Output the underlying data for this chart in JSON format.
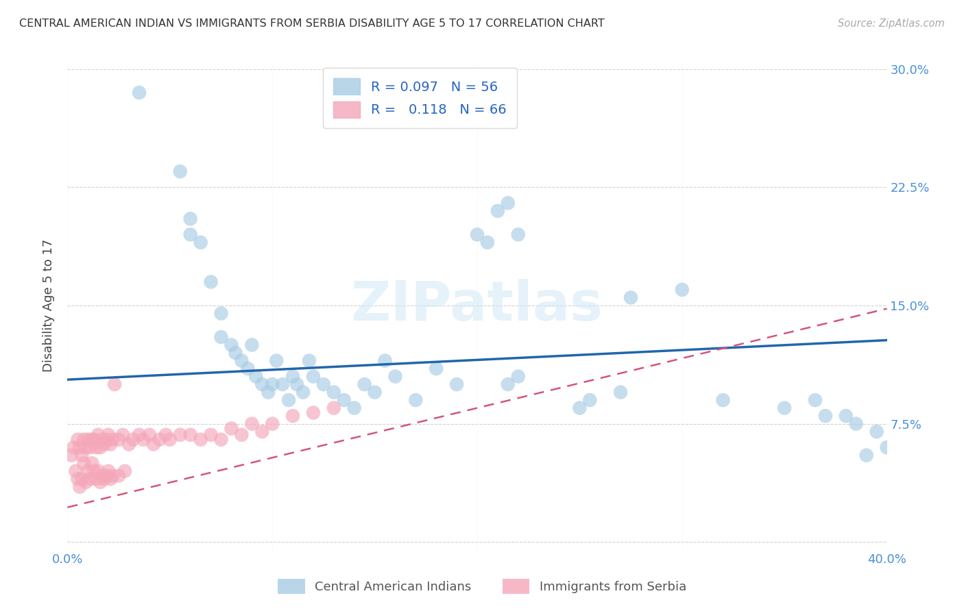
{
  "title": "CENTRAL AMERICAN INDIAN VS IMMIGRANTS FROM SERBIA DISABILITY AGE 5 TO 17 CORRELATION CHART",
  "source": "Source: ZipAtlas.com",
  "ylabel": "Disability Age 5 to 17",
  "yticks": [
    0.0,
    0.075,
    0.15,
    0.225,
    0.3
  ],
  "ytick_labels": [
    "",
    "7.5%",
    "15.0%",
    "22.5%",
    "30.0%"
  ],
  "xlim": [
    0.0,
    0.4
  ],
  "ylim": [
    -0.005,
    0.305
  ],
  "legend_bottom1": "Central American Indians",
  "legend_bottom2": "Immigrants from Serbia",
  "blue_color": "#a8cce4",
  "pink_color": "#f4a7b9",
  "line_blue": "#2166ac",
  "line_pink": "#d4547a",
  "watermark": "ZIPatlas",
  "blue_line_start_y": 0.103,
  "blue_line_end_y": 0.128,
  "pink_line_start_y": 0.022,
  "pink_line_end_y": 0.148,
  "blue_scatter_x": [
    0.035,
    0.055,
    0.06,
    0.06,
    0.065,
    0.07,
    0.075,
    0.075,
    0.08,
    0.082,
    0.085,
    0.088,
    0.09,
    0.092,
    0.095,
    0.098,
    0.1,
    0.102,
    0.105,
    0.108,
    0.11,
    0.112,
    0.115,
    0.118,
    0.12,
    0.125,
    0.13,
    0.135,
    0.14,
    0.145,
    0.15,
    0.155,
    0.16,
    0.17,
    0.18,
    0.19,
    0.2,
    0.205,
    0.21,
    0.215,
    0.22,
    0.25,
    0.255,
    0.275,
    0.3,
    0.32,
    0.35,
    0.365,
    0.37,
    0.38,
    0.385,
    0.39,
    0.395,
    0.4,
    0.215,
    0.22,
    0.27
  ],
  "blue_scatter_y": [
    0.285,
    0.235,
    0.205,
    0.195,
    0.19,
    0.165,
    0.145,
    0.13,
    0.125,
    0.12,
    0.115,
    0.11,
    0.125,
    0.105,
    0.1,
    0.095,
    0.1,
    0.115,
    0.1,
    0.09,
    0.105,
    0.1,
    0.095,
    0.115,
    0.105,
    0.1,
    0.095,
    0.09,
    0.085,
    0.1,
    0.095,
    0.115,
    0.105,
    0.09,
    0.11,
    0.1,
    0.195,
    0.19,
    0.21,
    0.215,
    0.195,
    0.085,
    0.09,
    0.155,
    0.16,
    0.09,
    0.085,
    0.09,
    0.08,
    0.08,
    0.075,
    0.055,
    0.07,
    0.06,
    0.1,
    0.105,
    0.095
  ],
  "pink_scatter_x": [
    0.002,
    0.003,
    0.004,
    0.005,
    0.005,
    0.006,
    0.006,
    0.007,
    0.007,
    0.008,
    0.008,
    0.009,
    0.009,
    0.01,
    0.01,
    0.011,
    0.011,
    0.012,
    0.012,
    0.013,
    0.013,
    0.014,
    0.014,
    0.015,
    0.015,
    0.016,
    0.016,
    0.017,
    0.017,
    0.018,
    0.018,
    0.019,
    0.019,
    0.02,
    0.02,
    0.021,
    0.021,
    0.022,
    0.022,
    0.023,
    0.025,
    0.025,
    0.027,
    0.028,
    0.03,
    0.032,
    0.035,
    0.037,
    0.04,
    0.042,
    0.045,
    0.048,
    0.05,
    0.055,
    0.06,
    0.065,
    0.07,
    0.075,
    0.08,
    0.085,
    0.09,
    0.095,
    0.1,
    0.11,
    0.12,
    0.13
  ],
  "pink_scatter_y": [
    0.055,
    0.06,
    0.045,
    0.065,
    0.04,
    0.06,
    0.035,
    0.055,
    0.04,
    0.065,
    0.05,
    0.06,
    0.038,
    0.065,
    0.045,
    0.06,
    0.04,
    0.065,
    0.05,
    0.065,
    0.045,
    0.06,
    0.04,
    0.068,
    0.045,
    0.06,
    0.038,
    0.065,
    0.042,
    0.062,
    0.04,
    0.065,
    0.042,
    0.068,
    0.045,
    0.062,
    0.04,
    0.065,
    0.042,
    0.1,
    0.065,
    0.042,
    0.068,
    0.045,
    0.062,
    0.065,
    0.068,
    0.065,
    0.068,
    0.062,
    0.065,
    0.068,
    0.065,
    0.068,
    0.068,
    0.065,
    0.068,
    0.065,
    0.072,
    0.068,
    0.075,
    0.07,
    0.075,
    0.08,
    0.082,
    0.085
  ]
}
